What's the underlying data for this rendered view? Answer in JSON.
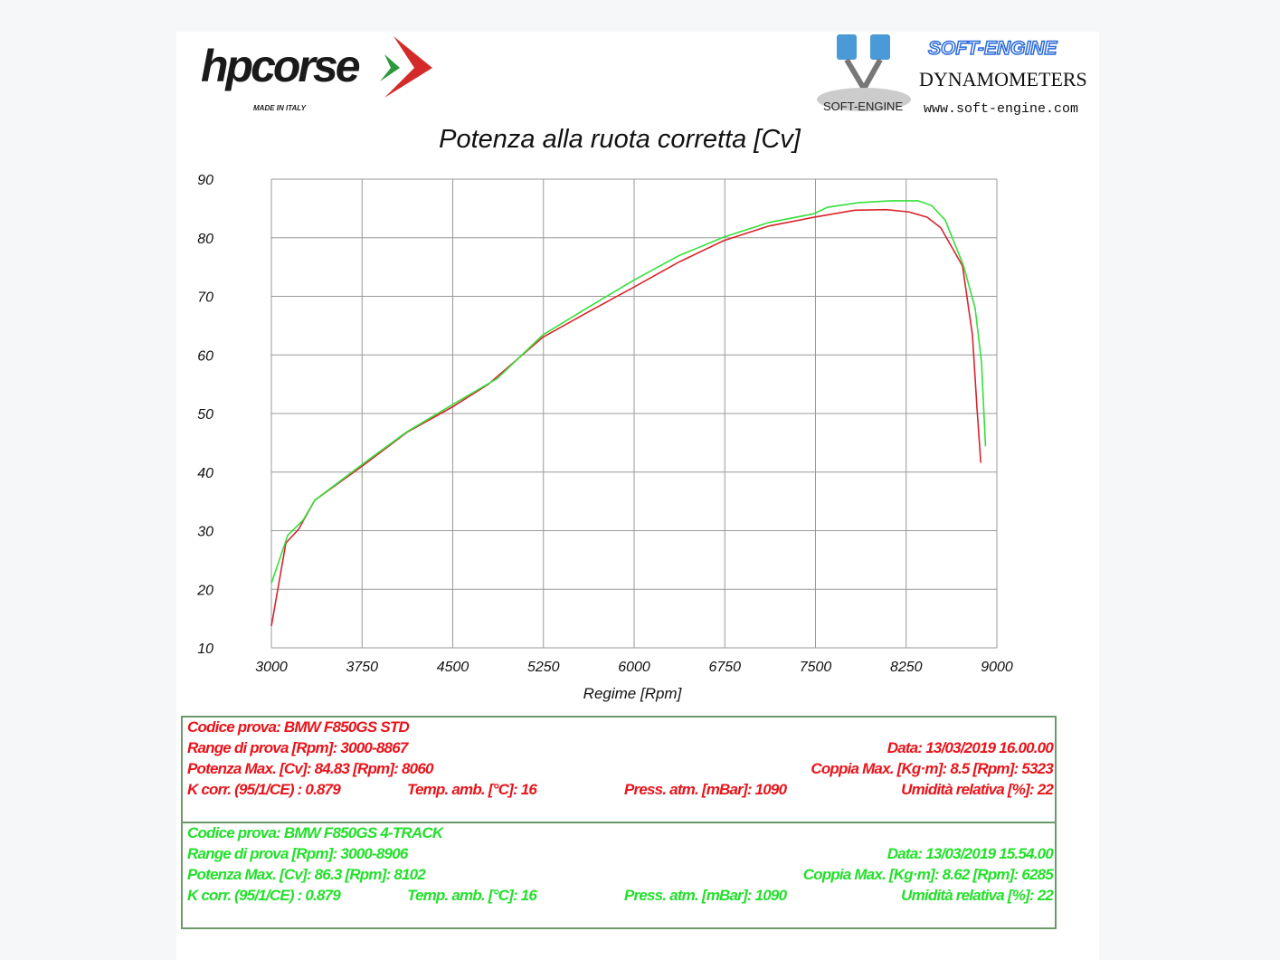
{
  "logos": {
    "hpcorse": {
      "text": "hpcorse",
      "tagline": "MADE IN ITALY"
    },
    "softengine": {
      "brand": "SOFT-ENGINE",
      "subtitle": "DYNAMOMETERS",
      "url": "www.soft-engine.com",
      "emblem_text": "SOFT-ENGINE"
    }
  },
  "chart_data": {
    "type": "line",
    "title": "Potenza alla ruota corretta [Cv]",
    "xlabel": "Regime [Rpm]",
    "ylabel": "",
    "xlim": [
      3000,
      9000
    ],
    "ylim": [
      10,
      90
    ],
    "xticks": [
      3000,
      3750,
      4500,
      5250,
      6000,
      6750,
      7500,
      8250,
      9000
    ],
    "yticks": [
      10,
      20,
      30,
      40,
      50,
      60,
      70,
      80,
      90
    ],
    "grid": true,
    "series": [
      {
        "color": "#d8242c",
        "x": [
          3000,
          3120,
          3224,
          3359,
          3750,
          4122,
          4496,
          4795,
          5244,
          5618,
          5992,
          6366,
          6740,
          7114,
          7488,
          7825,
          8087,
          8274,
          8424,
          8536,
          8716,
          8798,
          8835,
          8867
        ],
        "y": [
          13.7,
          27.9,
          30.2,
          35.2,
          41.0,
          46.8,
          51.1,
          55.0,
          63.0,
          67.3,
          71.5,
          75.8,
          79.5,
          82.0,
          83.5,
          84.7,
          84.8,
          84.4,
          83.5,
          81.7,
          75.2,
          63.4,
          51.1,
          41.6
        ]
      },
      {
        "color": "#35e03a",
        "x": [
          3000,
          3135,
          3262,
          3359,
          3750,
          4122,
          4496,
          4870,
          5244,
          5618,
          5992,
          6366,
          6740,
          7114,
          7488,
          7600,
          7862,
          8124,
          8349,
          8461,
          8573,
          8723,
          8820,
          8873,
          8906
        ],
        "y": [
          21.0,
          29.2,
          31.8,
          35.2,
          41.3,
          46.9,
          51.5,
          56.0,
          63.4,
          68.1,
          72.7,
          76.9,
          80.1,
          82.6,
          84.1,
          85.2,
          86.0,
          86.3,
          86.3,
          85.5,
          83.0,
          75.3,
          68.0,
          58.8,
          44.4
        ]
      }
    ]
  },
  "tests": [
    {
      "color": "#e8141b",
      "codice": "Codice prova: BMW F850GS STD",
      "range": "Range di prova [Rpm]: 3000-8867",
      "data": "Data: 13/03/2019   16.00.00",
      "potenza": "Potenza Max. [Cv]: 84.83   [Rpm]: 8060",
      "coppia": "Coppia Max. [Kg·m]: 8.5   [Rpm]: 5323",
      "kcorr": "K corr. (95/1/CE) : 0.879",
      "temp": "Temp. amb. [°C]: 16",
      "press": "Press. atm. [mBar]: 1090",
      "umid": "Umidità relativa [%]: 22"
    },
    {
      "color": "#22e02a",
      "codice": "Codice prova: BMW F850GS 4-TRACK",
      "range": "Range di prova [Rpm]: 3000-8906",
      "data": "Data: 13/03/2019   15.54.00",
      "potenza": "Potenza Max. [Cv]: 86.3   [Rpm]: 8102",
      "coppia": "Coppia Max. [Kg·m]: 8.62   [Rpm]: 6285",
      "kcorr": "K corr. (95/1/CE) : 0.879",
      "temp": "Temp. amb. [°C]: 16",
      "press": "Press. atm. [mBar]: 1090",
      "umid": "Umidità relativa [%]: 22"
    }
  ]
}
